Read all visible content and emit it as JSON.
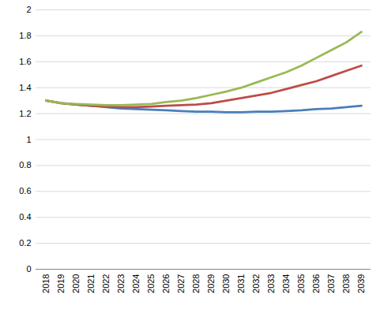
{
  "chart_data": {
    "type": "line",
    "categories": [
      "2018",
      "2019",
      "2020",
      "2021",
      "2022",
      "2023",
      "2024",
      "2025",
      "2026",
      "2027",
      "2028",
      "2029",
      "2030",
      "2031",
      "2032",
      "2033",
      "2034",
      "2035",
      "2036",
      "2037",
      "2038",
      "2039"
    ],
    "series": [
      {
        "color": "#4a7ebb",
        "values": [
          1.3,
          1.28,
          1.27,
          1.26,
          1.25,
          1.24,
          1.235,
          1.23,
          1.225,
          1.22,
          1.215,
          1.215,
          1.21,
          1.21,
          1.215,
          1.215,
          1.22,
          1.225,
          1.235,
          1.24,
          1.25,
          1.26
        ]
      },
      {
        "color": "#be4b48",
        "values": [
          1.3,
          1.28,
          1.27,
          1.26,
          1.255,
          1.25,
          1.25,
          1.255,
          1.26,
          1.265,
          1.27,
          1.28,
          1.3,
          1.32,
          1.34,
          1.36,
          1.39,
          1.42,
          1.45,
          1.49,
          1.53,
          1.57
        ]
      },
      {
        "color": "#98b954",
        "values": [
          1.3,
          1.28,
          1.275,
          1.27,
          1.265,
          1.265,
          1.27,
          1.275,
          1.29,
          1.3,
          1.32,
          1.345,
          1.37,
          1.4,
          1.44,
          1.48,
          1.52,
          1.57,
          1.63,
          1.69,
          1.75,
          1.83
        ]
      }
    ],
    "ylim": [
      0,
      2
    ],
    "yticks": [
      0,
      0.2,
      0.4,
      0.6,
      0.8,
      1,
      1.2,
      1.4,
      1.6,
      1.8,
      2
    ],
    "grid": true
  }
}
